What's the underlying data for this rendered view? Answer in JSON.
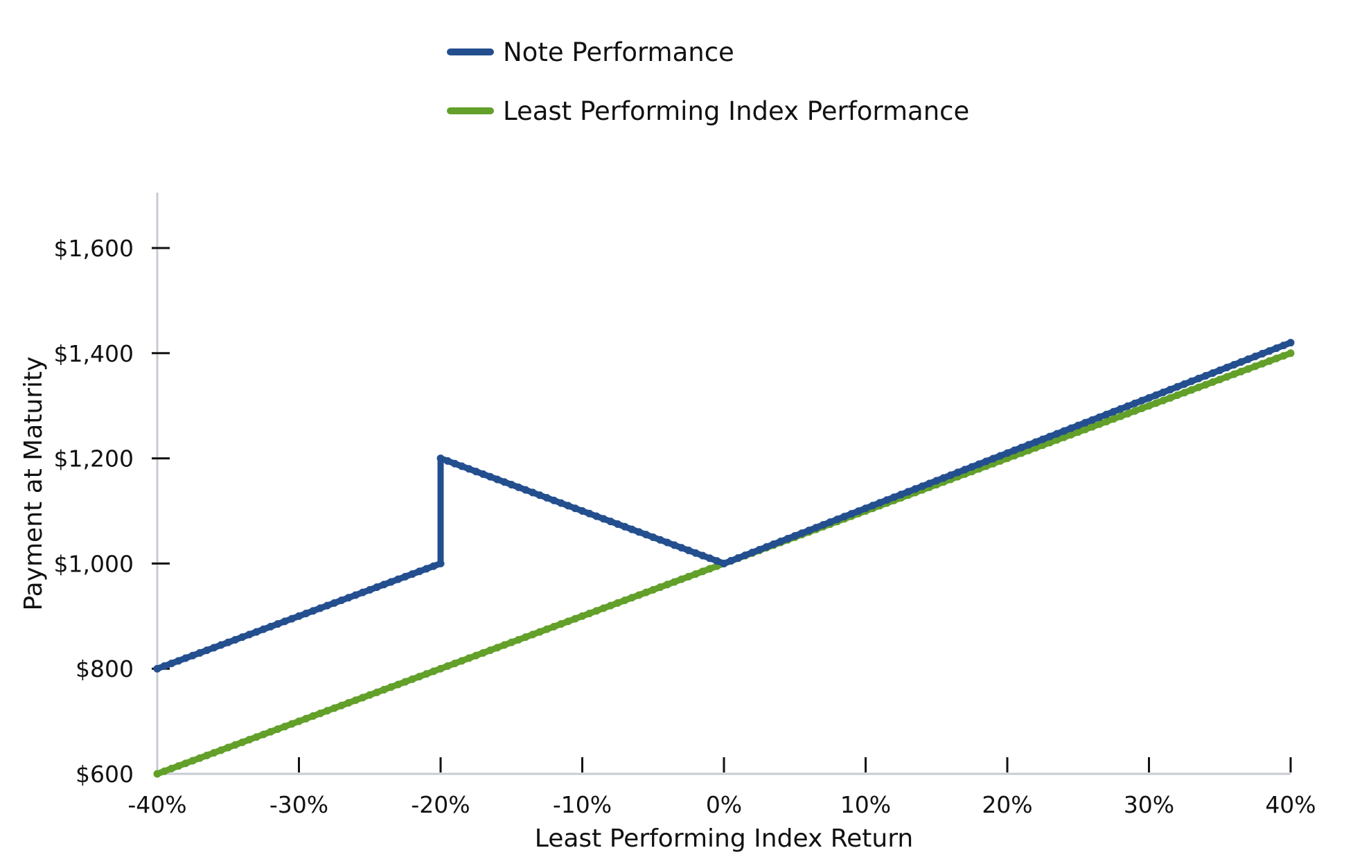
{
  "chart_data": {
    "type": "line",
    "title": "",
    "xlabel": "Least Performing Index Return",
    "ylabel": "Payment at Maturity",
    "xlim": [
      -40,
      40
    ],
    "ylim": [
      600,
      1700
    ],
    "grid": false,
    "legend_position": "top-center",
    "x_ticks": [
      -40,
      -30,
      -20,
      -10,
      0,
      10,
      20,
      30,
      40
    ],
    "x_tick_labels": [
      "-40%",
      "-30%",
      "-20%",
      "-10%",
      "0%",
      "10%",
      "20%",
      "30%",
      "40%"
    ],
    "y_ticks": [
      600,
      800,
      1000,
      1200,
      1400,
      1600
    ],
    "y_tick_labels": [
      "$600",
      "$800",
      "$1,000",
      "$1,200",
      "$1,400",
      "$1,600"
    ],
    "series": [
      {
        "name": "Note Performance",
        "color": "#244f8f",
        "points": [
          [
            -40,
            800
          ],
          [
            -20,
            1000
          ],
          [
            -20,
            1200
          ],
          [
            0,
            1000
          ],
          [
            40,
            1420
          ]
        ]
      },
      {
        "name": "Least Performing Index Performance",
        "color": "#62a02a",
        "points": [
          [
            -40,
            600
          ],
          [
            40,
            1400
          ]
        ]
      }
    ],
    "axis_color": "#c7cbd1"
  }
}
